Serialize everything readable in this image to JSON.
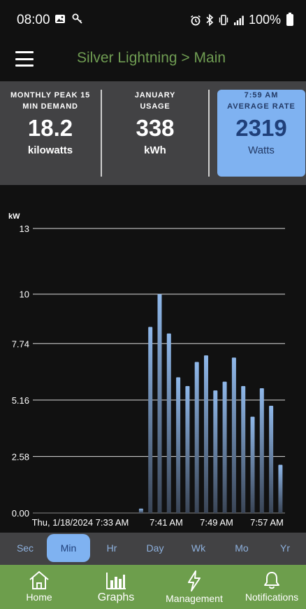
{
  "status_bar": {
    "time": "08:00",
    "left_icons": [
      "image-icon",
      "key-icon"
    ],
    "right_icons": [
      "alarm-icon",
      "bluetooth-icon",
      "vibrate-icon",
      "signal-icon"
    ],
    "battery": "100%"
  },
  "header": {
    "title": "Silver Lightning > Main"
  },
  "stats": [
    {
      "label_line1": "MONTHLY PEAK 15",
      "label_line2": "MIN DEMAND",
      "value": "18.2",
      "unit": "kilowatts"
    },
    {
      "label_line1": "JANUARY",
      "label_line2": "USAGE",
      "value": "338",
      "unit": "kWh"
    },
    {
      "label_line1": "7:59 AM",
      "label_line2": "AVERAGE RATE",
      "value": "2319",
      "unit": "Watts"
    }
  ],
  "colors": {
    "accent_blue": "#7fb2f1",
    "brand_green": "#6d9e4c",
    "title_green": "#6f9c52",
    "bar_top": "#8fb8ea",
    "bar_bottom": "#3a4556"
  },
  "chart_data": {
    "type": "bar",
    "ylabel": "kW",
    "y_ticks": [
      "0.00",
      "2.58",
      "5.16",
      "7.74",
      "10",
      "13"
    ],
    "ylim": [
      0,
      13
    ],
    "x_tick_labels": [
      "Thu, 1/18/2024 7:33 AM",
      "7:41 AM",
      "7:49 AM",
      "7:57 AM"
    ],
    "grid": true,
    "categories": [
      "7:33",
      "7:34",
      "7:35",
      "7:36",
      "7:37",
      "7:38",
      "7:39",
      "7:40",
      "7:41",
      "7:42",
      "7:43",
      "7:44",
      "7:45",
      "7:46",
      "7:47",
      "7:48",
      "7:49",
      "7:50",
      "7:51",
      "7:52",
      "7:53",
      "7:54",
      "7:55",
      "7:56",
      "7:57",
      "7:58",
      "7:59"
    ],
    "values": [
      0,
      0,
      0,
      0,
      0,
      0,
      0,
      0,
      0,
      0,
      0,
      0.2,
      8.5,
      10,
      8.2,
      6.2,
      5.8,
      6.9,
      7.2,
      5.6,
      6.0,
      7.1,
      5.8,
      4.4,
      5.7,
      4.9,
      2.2
    ]
  },
  "range_buttons": {
    "items": [
      "Sec",
      "Min",
      "Hr",
      "Day",
      "Wk",
      "Mo",
      "Yr"
    ],
    "selected": "Min"
  },
  "bottom_nav": {
    "items": [
      {
        "label": "Home",
        "icon": "home-icon"
      },
      {
        "label": "Graphs",
        "icon": "bar-chart-icon"
      },
      {
        "label": "Management",
        "icon": "lightning-icon"
      },
      {
        "label": "Notifications",
        "icon": "bell-icon"
      }
    ]
  }
}
